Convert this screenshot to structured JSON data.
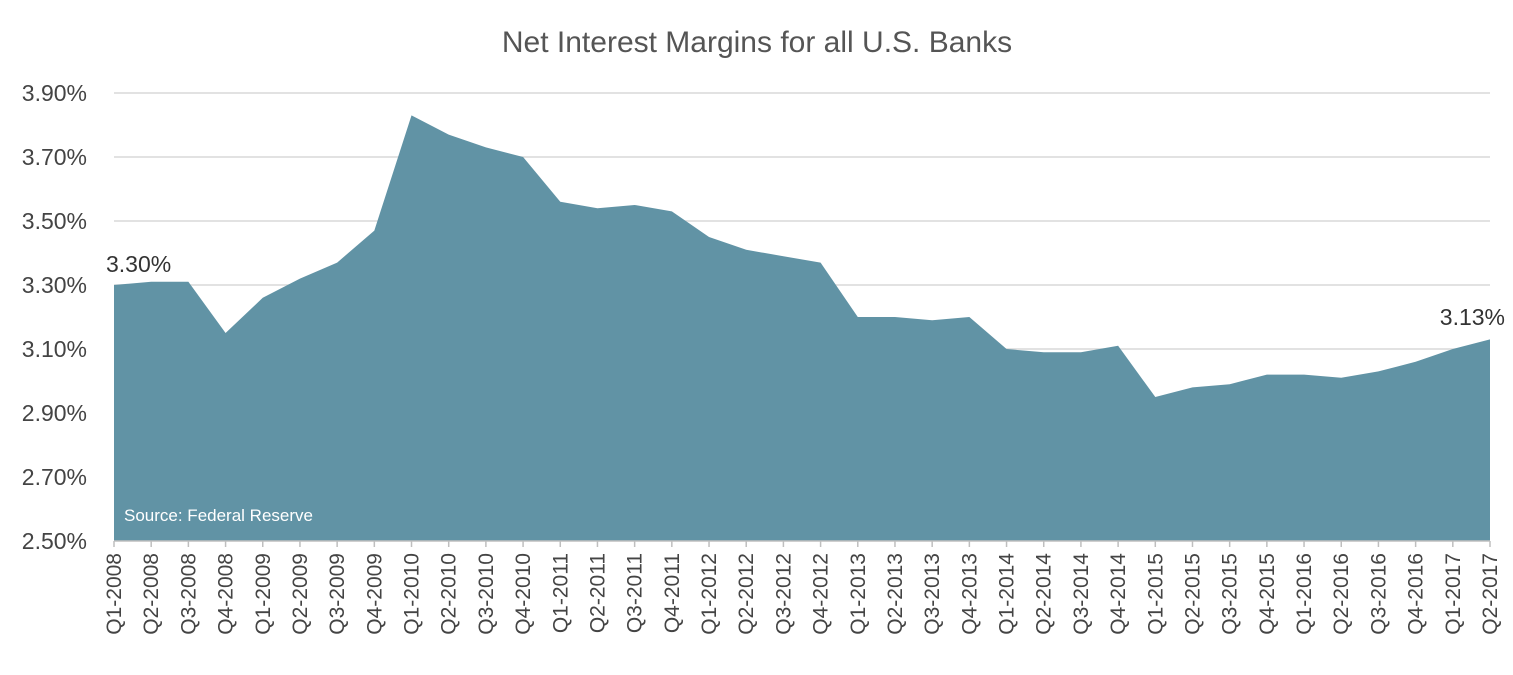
{
  "chart_data": {
    "type": "area",
    "title": "Net Interest Margins for all U.S. Banks",
    "xlabel": "",
    "ylabel": "",
    "ylim": [
      2.5,
      3.9
    ],
    "y_ticks": [
      "3.90%",
      "3.70%",
      "3.50%",
      "3.30%",
      "3.10%",
      "2.90%",
      "2.70%",
      "2.50%"
    ],
    "y_tick_values": [
      3.9,
      3.7,
      3.5,
      3.3,
      3.1,
      2.9,
      2.7,
      2.5
    ],
    "grid": true,
    "legend": "none",
    "color": "#6193a5",
    "categories": [
      "Q1-2008",
      "Q2-2008",
      "Q3-2008",
      "Q4-2008",
      "Q1-2009",
      "Q2-2009",
      "Q3-2009",
      "Q4-2009",
      "Q1-2010",
      "Q2-2010",
      "Q3-2010",
      "Q4-2010",
      "Q1-2011",
      "Q2-2011",
      "Q3-2011",
      "Q4-2011",
      "Q1-2012",
      "Q2-2012",
      "Q3-2012",
      "Q4-2012",
      "Q1-2013",
      "Q2-2013",
      "Q3-2013",
      "Q4-2013",
      "Q1-2014",
      "Q2-2014",
      "Q3-2014",
      "Q4-2014",
      "Q1-2015",
      "Q2-2015",
      "Q3-2015",
      "Q4-2015",
      "Q1-2016",
      "Q2-2016",
      "Q3-2016",
      "Q4-2016",
      "Q1-2017",
      "Q2-2017"
    ],
    "values": [
      3.3,
      3.31,
      3.31,
      3.15,
      3.26,
      3.32,
      3.37,
      3.47,
      3.83,
      3.77,
      3.73,
      3.7,
      3.56,
      3.54,
      3.55,
      3.53,
      3.45,
      3.41,
      3.39,
      3.37,
      3.2,
      3.2,
      3.19,
      3.2,
      3.1,
      3.09,
      3.09,
      3.11,
      2.95,
      2.98,
      2.99,
      3.02,
      3.02,
      3.01,
      3.03,
      3.06,
      3.1,
      3.13
    ],
    "annotations": [
      {
        "text": "3.30%",
        "index": 0
      },
      {
        "text": "3.13%",
        "index": 37
      },
      {
        "text": "Source: Federal Reserve"
      }
    ]
  }
}
